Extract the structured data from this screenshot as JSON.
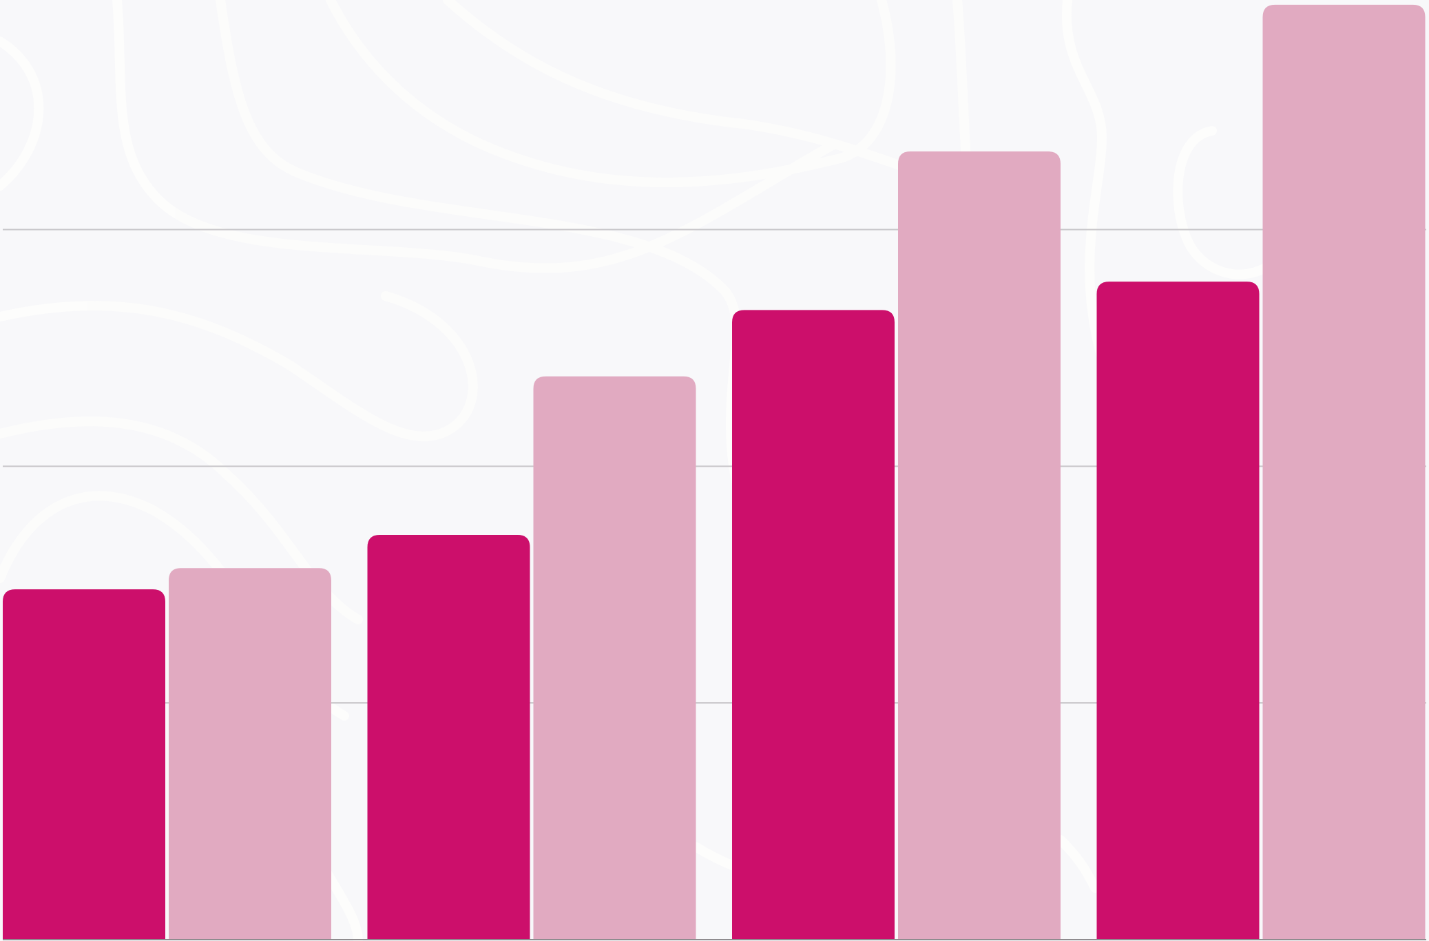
{
  "chart_data": {
    "type": "bar",
    "categories": [
      "",
      "",
      "",
      ""
    ],
    "series": [
      {
        "color": "#cc0f6b",
        "values": [
          1.48,
          1.71,
          2.66,
          2.78
        ]
      },
      {
        "color": "#e1aac1",
        "values": [
          1.57,
          2.38,
          3.33,
          3.95
        ]
      }
    ],
    "ylim": [
      0,
      3.97
    ],
    "gridlines": [
      1,
      2,
      3
    ],
    "grid": true,
    "legend": "none",
    "title": "",
    "xlabel": "",
    "ylabel": ""
  },
  "colors": {
    "background": "#f8f8fa",
    "background_pattern": "#fdfdfc",
    "gridline": "#c8c6c9",
    "baseline": "#8f8c8f"
  }
}
